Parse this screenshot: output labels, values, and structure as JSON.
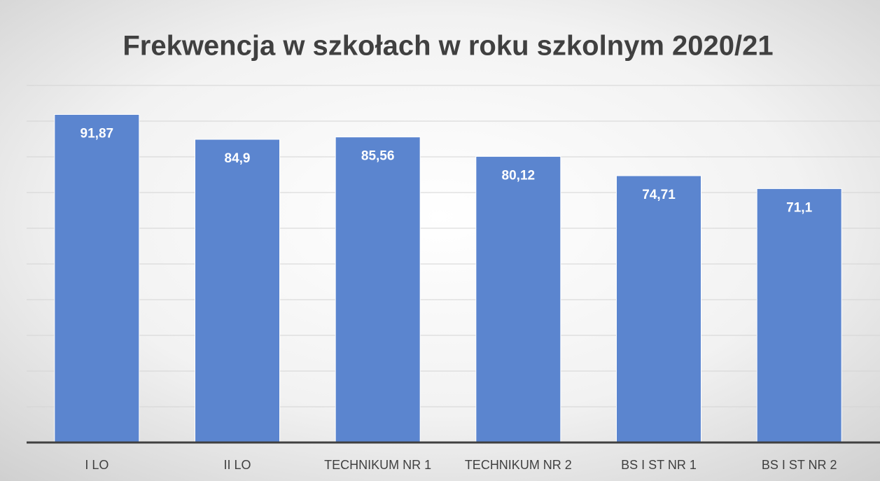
{
  "chart_data": {
    "type": "bar",
    "title": "Frekwencja w szkołach w roku szkolnym 2020/21",
    "categories": [
      "I LO",
      "II LO",
      "TECHNIKUM NR 1",
      "TECHNIKUM NR 2",
      "BS I ST NR 1",
      "BS I ST NR 2"
    ],
    "values": [
      91.87,
      84.9,
      85.56,
      80.12,
      74.71,
      71.1
    ],
    "value_labels": [
      "91,87",
      "84,9",
      "85,56",
      "80,12",
      "74,71",
      "71,1"
    ],
    "color": "#5b85cf",
    "ylim": [
      0,
      100
    ],
    "yticks": [
      0,
      10,
      20,
      30,
      40,
      50,
      60,
      70,
      80,
      90,
      100
    ],
    "grid": true
  }
}
